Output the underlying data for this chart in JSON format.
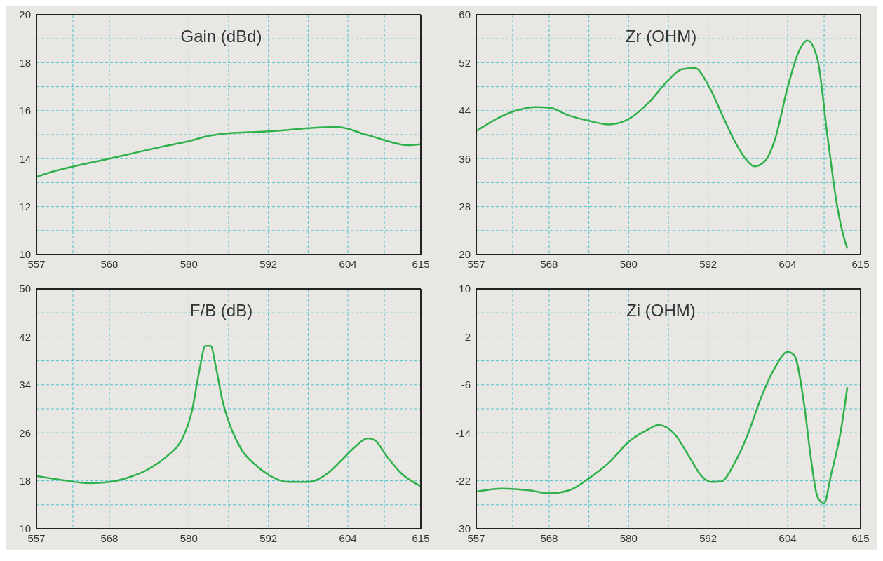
{
  "chart_data": [
    {
      "type": "line",
      "title": "Gain (dBd)",
      "color": "#2eb04a",
      "grid": true,
      "x": [
        557,
        560,
        563,
        568,
        572,
        576,
        580,
        583,
        586,
        589,
        592,
        595,
        598,
        602,
        604,
        606,
        608,
        610,
        613,
        615
      ],
      "values": [
        13.24,
        13.5,
        13.7,
        14.0,
        14.25,
        14.5,
        14.73,
        14.95,
        15.06,
        15.1,
        15.14,
        15.2,
        15.27,
        15.32,
        15.25,
        15.06,
        14.9,
        14.73,
        14.56,
        14.6
      ],
      "xlim": [
        557,
        615
      ],
      "xticks": [
        557,
        {
          "value": 562.5,
          "label": null
        },
        568,
        {
          "value": 574,
          "label": null
        },
        580,
        {
          "value": 586,
          "label": null
        },
        592,
        {
          "value": 598,
          "label": null
        },
        604,
        {
          "value": 609.5,
          "label": null
        },
        615
      ],
      "ylim": [
        10,
        20
      ],
      "yticks": [
        10,
        {
          "value": 11,
          "label": null
        },
        12,
        {
          "value": 13,
          "label": null
        },
        14,
        {
          "value": 15,
          "label": null
        },
        16,
        {
          "value": 17,
          "label": null
        },
        18,
        {
          "value": 19,
          "label": null
        },
        20
      ]
    },
    {
      "type": "line",
      "title": "Zr (OHM)",
      "color": "#2eb04a",
      "grid": true,
      "x": [
        557,
        560,
        563,
        566,
        568,
        571,
        574,
        577,
        580,
        583,
        586,
        588,
        590,
        592,
        594,
        596,
        598,
        599,
        600.5,
        602,
        604,
        605.5,
        607,
        608.5,
        610,
        611.5,
        612.5,
        613
      ],
      "values": [
        40.6,
        42.6,
        44.0,
        44.6,
        44.5,
        43.2,
        42.3,
        41.7,
        42.6,
        45.3,
        49.1,
        50.9,
        51.1,
        48.3,
        43.6,
        38.9,
        35.5,
        34.7,
        35.5,
        38.9,
        47.9,
        53.4,
        55.7,
        52.6,
        39.8,
        27.9,
        22.8,
        21
      ],
      "xlim": [
        557,
        615
      ],
      "xticks": [
        557,
        {
          "value": 562.5,
          "label": null
        },
        568,
        {
          "value": 574,
          "label": null
        },
        580,
        {
          "value": 586,
          "label": null
        },
        592,
        {
          "value": 598,
          "label": null
        },
        604,
        {
          "value": 609.5,
          "label": null
        },
        615
      ],
      "ylim": [
        20,
        60
      ],
      "yticks": [
        20,
        {
          "value": 24,
          "label": null
        },
        28,
        {
          "value": 32,
          "label": null
        },
        36,
        {
          "value": 40,
          "label": null
        },
        44,
        {
          "value": 48,
          "label": null
        },
        52,
        {
          "value": 56,
          "label": null
        },
        60
      ]
    },
    {
      "type": "line",
      "title": "F/B (dB)",
      "color": "#2eb04a",
      "grid": true,
      "x": [
        557,
        561,
        565,
        568,
        571,
        574,
        577,
        579,
        580.5,
        581.5,
        582.5,
        583.3,
        584,
        585,
        586.5,
        588,
        590,
        592,
        595,
        598,
        601,
        603,
        605,
        607,
        608,
        610,
        612,
        615
      ],
      "values": [
        18.8,
        18.1,
        17.6,
        17.8,
        18.6,
        20.0,
        22.4,
        25.0,
        29.8,
        35.9,
        40.5,
        40.5,
        37.4,
        31.7,
        26.4,
        23.1,
        20.7,
        19.0,
        17.8,
        17.8,
        19.3,
        21.4,
        23.6,
        25.1,
        24.8,
        21.9,
        19.3,
        17.1
      ],
      "xlim": [
        557,
        615
      ],
      "xticks": [
        557,
        {
          "value": 562.5,
          "label": null
        },
        568,
        {
          "value": 574,
          "label": null
        },
        580,
        {
          "value": 586,
          "label": null
        },
        592,
        {
          "value": 598,
          "label": null
        },
        604,
        {
          "value": 609.5,
          "label": null
        },
        615
      ],
      "ylim": [
        10,
        50
      ],
      "yticks": [
        10,
        {
          "value": 14,
          "label": null
        },
        18,
        {
          "value": 22,
          "label": null
        },
        26,
        {
          "value": 30,
          "label": null
        },
        34,
        {
          "value": 38,
          "label": null
        },
        42,
        {
          "value": 46,
          "label": null
        },
        50
      ]
    },
    {
      "type": "line",
      "title": "Zi (OHM)",
      "color": "#2eb04a",
      "grid": true,
      "x": [
        557,
        561,
        565,
        568,
        571,
        574,
        577,
        580,
        583,
        584.5,
        587,
        589,
        591,
        592.5,
        594,
        596,
        598,
        600,
        602,
        604,
        605,
        606.5,
        607.5,
        608.5,
        609.5,
        610.5,
        612,
        613
      ],
      "values": [
        -23.8,
        -23.3,
        -23.6,
        -24.1,
        -23.6,
        -21.6,
        -19.0,
        -15.5,
        -13.4,
        -12.7,
        -14.3,
        -17.7,
        -21.2,
        -22.2,
        -22.1,
        -19.0,
        -14.2,
        -8.1,
        -3.3,
        -0.5,
        -1.1,
        -9.4,
        -18.2,
        -24.7,
        -25.8,
        -21.2,
        -13.8,
        -6.4
      ],
      "xlim": [
        557,
        615
      ],
      "xticks": [
        557,
        {
          "value": 562.5,
          "label": null
        },
        568,
        {
          "value": 574,
          "label": null
        },
        580,
        {
          "value": 586,
          "label": null
        },
        592,
        {
          "value": 598,
          "label": null
        },
        604,
        {
          "value": 609.5,
          "label": null
        },
        615
      ],
      "ylim": [
        -30,
        10
      ],
      "yticks": [
        -30,
        {
          "value": -26,
          "label": null
        },
        -22,
        {
          "value": -18,
          "label": null
        },
        -14,
        {
          "value": -10,
          "label": null
        },
        -6,
        {
          "value": -2,
          "label": null
        },
        2,
        {
          "value": 6,
          "label": null
        },
        10
      ]
    }
  ]
}
